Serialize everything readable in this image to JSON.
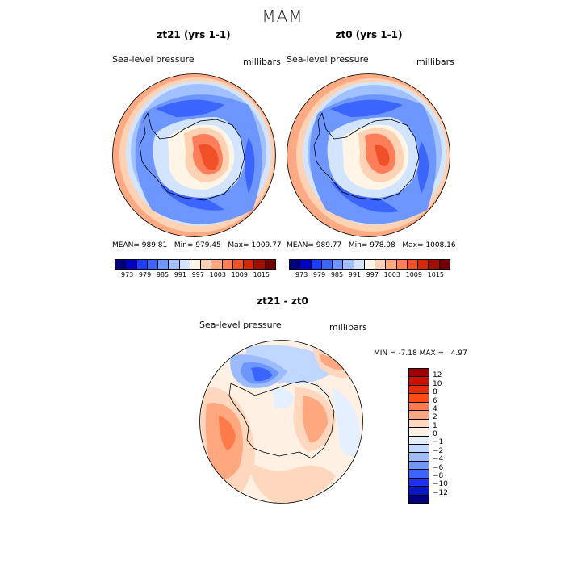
{
  "title": "MAM",
  "panels": [
    {
      "title": "zt21 (yrs 1-1)",
      "variable": "Sea-level pressure",
      "units": "millibars",
      "stats": {
        "mean_label": "MEAN=",
        "mean": "989.81",
        "min_label": "Min=",
        "min": "979.45",
        "max_label": "Max=",
        "max": "1009.77"
      }
    },
    {
      "title": "zt0 (yrs 1-1)",
      "variable": "Sea-level pressure",
      "units": "millibars",
      "stats": {
        "mean_label": "MEAN=",
        "mean": "989.77",
        "min_label": "Min=",
        "min": "978.08",
        "max_label": "Max=",
        "max": "1008.16"
      }
    }
  ],
  "abs_colorbar": {
    "colors": [
      "#00007f",
      "#0000c8",
      "#1e3cff",
      "#3c64ff",
      "#6e96ff",
      "#a0c0ff",
      "#d2e4ff",
      "#fff5e6",
      "#ffd2b4",
      "#ffaa82",
      "#ff7e5a",
      "#f05028",
      "#d02a0a",
      "#a01000",
      "#700000"
    ],
    "labels": [
      "973",
      "979",
      "985",
      "991",
      "997",
      "1003",
      "1009",
      "1015"
    ]
  },
  "diff_panel": {
    "title": "zt21 - zt0",
    "variable": "Sea-level pressure",
    "units": "millibars",
    "min_label": "MIN =",
    "min": "-7.18",
    "max_label": "MAX =",
    "max": "4.97"
  },
  "diff_colorbar": {
    "colors": [
      "#a00000",
      "#cc1100",
      "#e82e00",
      "#ff4a14",
      "#ff7a4a",
      "#ffa880",
      "#ffd6be",
      "#fff0e4",
      "#e4efff",
      "#c0d8ff",
      "#9cbcff",
      "#6e96ff",
      "#3c64ff",
      "#1e32ee",
      "#0a14c8",
      "#000080"
    ],
    "labels": [
      "12",
      "10",
      "8",
      "6",
      "4",
      "2",
      "1",
      "0",
      "−1",
      "−2",
      "−4",
      "−6",
      "−8",
      "−10",
      "−12"
    ]
  }
}
